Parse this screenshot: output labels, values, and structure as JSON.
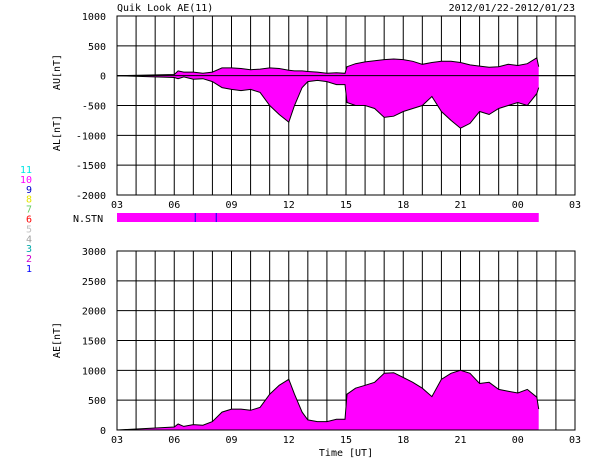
{
  "header": {
    "title": "Quik Look AE(11)",
    "date_range": "2012/01/22-2012/01/23"
  },
  "legend": {
    "station_numbers": [
      {
        "label": "11",
        "color": "#00e5e5"
      },
      {
        "label": "10",
        "color": "#ff00ff"
      },
      {
        "label": "9",
        "color": "#0000cc"
      },
      {
        "label": "8",
        "color": "#e5e500"
      },
      {
        "label": "7",
        "color": "#66cc66"
      },
      {
        "label": "6",
        "color": "#ff0000"
      },
      {
        "label": "5",
        "color": "#c0c0c0"
      },
      {
        "label": "4",
        "color": "#a0a0a0"
      },
      {
        "label": "3",
        "color": "#00aaaa"
      },
      {
        "label": "2",
        "color": "#cc00cc"
      },
      {
        "label": "1",
        "color": "#0000ff"
      }
    ]
  },
  "colors": {
    "fill": "#ff00ff",
    "line": "#000000",
    "grid": "#000000",
    "station_mark": "#0000ff"
  },
  "chart_data": [
    {
      "type": "area",
      "name": "AU/AL panel",
      "ylabel_top": "AU[nT]",
      "ylabel_bottom": "AL[nT]",
      "ylim": [
        -2000,
        1000
      ],
      "yticks": [
        1000,
        500,
        0,
        -500,
        -1000,
        -1500,
        -2000
      ],
      "xlim": [
        3,
        27
      ],
      "xtick_labels": [
        "03",
        "06",
        "09",
        "12",
        "15",
        "18",
        "21",
        "00",
        "03"
      ],
      "data_end_hour": 25.1,
      "x": [
        3,
        6,
        6.2,
        6.5,
        7,
        7.5,
        8,
        8.5,
        9,
        9.5,
        10,
        10.5,
        11,
        11.5,
        12,
        12.3,
        12.7,
        13,
        13.5,
        14,
        14.5,
        14.95,
        15.05,
        15.5,
        16,
        16.5,
        17,
        17.5,
        18,
        18.5,
        19,
        19.5,
        20,
        20.5,
        21,
        21.5,
        22,
        22.5,
        23,
        23.5,
        24,
        24.5,
        25,
        25.1
      ],
      "AU": [
        0,
        20,
        80,
        60,
        60,
        40,
        60,
        130,
        130,
        120,
        100,
        110,
        130,
        120,
        90,
        80,
        80,
        70,
        60,
        40,
        50,
        40,
        150,
        200,
        230,
        250,
        270,
        280,
        270,
        240,
        190,
        220,
        240,
        240,
        220,
        180,
        160,
        140,
        150,
        190,
        170,
        200,
        300,
        150
      ],
      "AL": [
        0,
        -30,
        -50,
        -20,
        -60,
        -50,
        -100,
        -200,
        -230,
        -250,
        -230,
        -280,
        -500,
        -650,
        -780,
        -500,
        -200,
        -100,
        -80,
        -100,
        -150,
        -150,
        -450,
        -500,
        -500,
        -550,
        -700,
        -680,
        -600,
        -550,
        -500,
        -350,
        -600,
        -750,
        -880,
        -800,
        -600,
        -650,
        -550,
        -500,
        -450,
        -500,
        -300,
        -200
      ],
      "station_bar": {
        "label": "N.STN",
        "value": 10,
        "marks_at_hours": [
          7.1,
          8.2
        ]
      }
    },
    {
      "type": "area",
      "name": "AE panel",
      "ylabel": "AE[nT]",
      "xlabel": "Time [UT]",
      "ylim": [
        0,
        3000
      ],
      "yticks": [
        3000,
        2500,
        2000,
        1500,
        1000,
        500,
        0
      ],
      "xlim": [
        3,
        27
      ],
      "xtick_labels": [
        "03",
        "06",
        "09",
        "12",
        "15",
        "18",
        "21",
        "00",
        "03"
      ],
      "x": [
        3,
        6,
        6.2,
        6.5,
        7,
        7.5,
        8,
        8.5,
        9,
        9.5,
        10,
        10.5,
        11,
        11.5,
        12,
        12.3,
        12.7,
        13,
        13.5,
        14,
        14.5,
        14.95,
        15.05,
        15.5,
        16,
        16.5,
        17,
        17.5,
        18,
        18.5,
        19,
        19.5,
        20,
        20.5,
        21,
        21.5,
        22,
        22.5,
        23,
        23.5,
        24,
        24.5,
        25,
        25.1
      ],
      "values": [
        0,
        50,
        100,
        60,
        90,
        80,
        140,
        300,
        350,
        350,
        330,
        380,
        600,
        750,
        850,
        600,
        300,
        170,
        140,
        140,
        180,
        180,
        600,
        700,
        750,
        800,
        950,
        960,
        880,
        800,
        700,
        560,
        850,
        950,
        1000,
        950,
        780,
        800,
        680,
        650,
        620,
        680,
        550,
        350
      ]
    }
  ]
}
